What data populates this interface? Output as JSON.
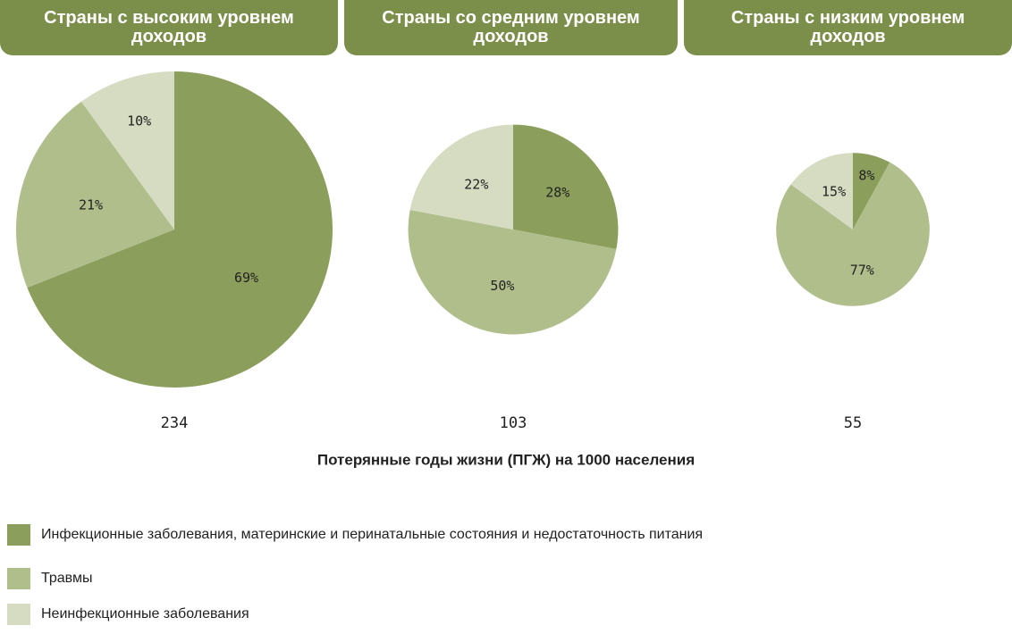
{
  "chart_data": [
    {
      "type": "pie",
      "title": "Страны с высоким уровнем доходов",
      "total": 234,
      "values": [
        69,
        21,
        10
      ],
      "value_labels": [
        "69%",
        "21%",
        "10%"
      ],
      "colors": [
        "#8c9e5c",
        "#b0be8c",
        "#d6dcc2"
      ]
    },
    {
      "type": "pie",
      "title": "Страны со средним уровнем доходов",
      "total": 103,
      "values": [
        28,
        50,
        22
      ],
      "value_labels": [
        "28%",
        "50%",
        "22%"
      ],
      "colors": [
        "#8c9e5c",
        "#b0be8c",
        "#d6dcc2"
      ]
    },
    {
      "type": "pie",
      "title": "Страны с низким уровнем доходов",
      "total": 55,
      "values": [
        8,
        77,
        15
      ],
      "value_labels": [
        "8%",
        "77%",
        "15%"
      ],
      "colors": [
        "#8c9e5c",
        "#b0be8c",
        "#d6dcc2"
      ]
    }
  ],
  "x_label": "Потерянные годы жизни (ПГЖ) на 1000 населения",
  "legend": [
    "Инфекционные заболевания, материнские и перинатальные состояния и недостаточность питания",
    "Травмы",
    "Неинфекционные заболевания"
  ]
}
